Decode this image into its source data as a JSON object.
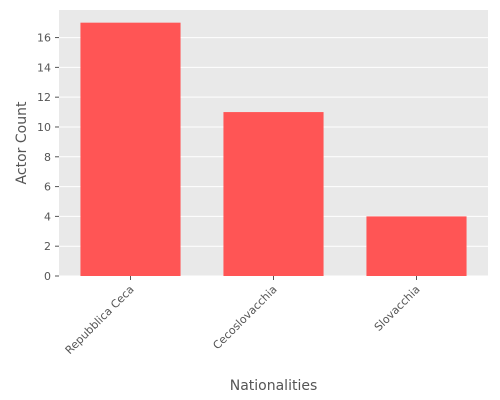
{
  "chart_data": {
    "type": "bar",
    "categories": [
      "Repubblica Ceca",
      "Cecoslovacchia",
      "Slovacchia"
    ],
    "values": [
      17,
      11,
      4
    ],
    "xlabel": "Nationalities",
    "ylabel": "Actor Count",
    "ylim": [
      0,
      17.85
    ],
    "yticks": [
      0,
      2,
      4,
      6,
      8,
      10,
      12,
      14,
      16
    ],
    "grid": true,
    "bar_color": "#ff5555",
    "background_color": "#e9e9e9",
    "grid_color": "#ffffff"
  }
}
